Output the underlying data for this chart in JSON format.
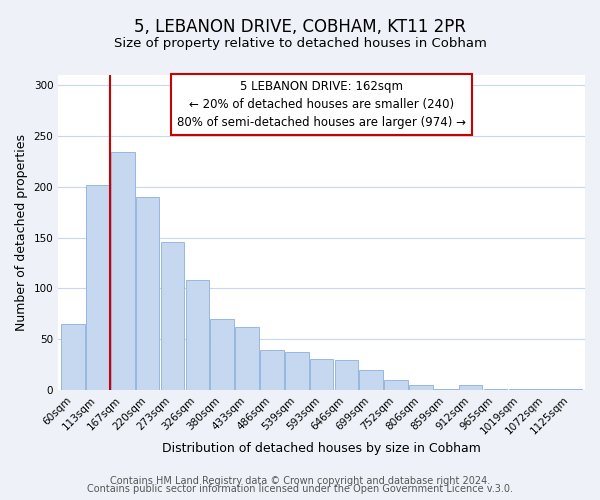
{
  "title": "5, LEBANON DRIVE, COBHAM, KT11 2PR",
  "subtitle": "Size of property relative to detached houses in Cobham",
  "xlabel": "Distribution of detached houses by size in Cobham",
  "ylabel": "Number of detached properties",
  "bin_labels": [
    "60sqm",
    "113sqm",
    "167sqm",
    "220sqm",
    "273sqm",
    "326sqm",
    "380sqm",
    "433sqm",
    "486sqm",
    "539sqm",
    "593sqm",
    "646sqm",
    "699sqm",
    "752sqm",
    "806sqm",
    "859sqm",
    "912sqm",
    "965sqm",
    "1019sqm",
    "1072sqm",
    "1125sqm"
  ],
  "bar_heights": [
    65,
    202,
    234,
    190,
    146,
    108,
    70,
    62,
    39,
    37,
    31,
    30,
    20,
    10,
    5,
    1,
    5,
    1,
    1,
    1,
    1
  ],
  "bar_color": "#c5d8f0",
  "bar_edge_color": "#8ab0d8",
  "vline_x_index": 1.5,
  "vline_color": "#cc0000",
  "ylim": [
    0,
    310
  ],
  "yticks": [
    0,
    50,
    100,
    150,
    200,
    250,
    300
  ],
  "annotation_title": "5 LEBANON DRIVE: 162sqm",
  "annotation_line1": "← 20% of detached houses are smaller (240)",
  "annotation_line2": "80% of semi-detached houses are larger (974) →",
  "annotation_box_color": "#ffffff",
  "annotation_box_edge": "#cc0000",
  "footer_line1": "Contains HM Land Registry data © Crown copyright and database right 2024.",
  "footer_line2": "Contains public sector information licensed under the Open Government Licence v.3.0.",
  "background_color": "#eef2f8",
  "plot_bg_color": "#ffffff",
  "grid_color": "#c8d8ec",
  "title_fontsize": 12,
  "subtitle_fontsize": 9.5,
  "axis_label_fontsize": 9,
  "tick_fontsize": 7.5,
  "footer_fontsize": 7
}
